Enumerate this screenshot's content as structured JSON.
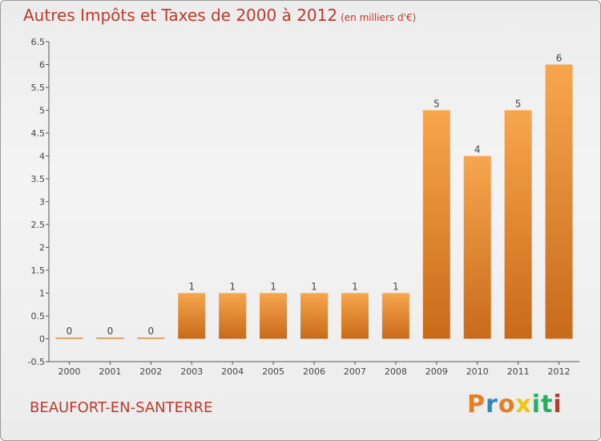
{
  "chart_data": {
    "type": "bar",
    "title": "Autres Impôts et Taxes de 2000 à 2012",
    "unit": "(en milliers d'€)",
    "categories": [
      "2000",
      "2001",
      "2002",
      "2003",
      "2004",
      "2005",
      "2006",
      "2007",
      "2008",
      "2009",
      "2010",
      "2011",
      "2012"
    ],
    "values": [
      0,
      0,
      0,
      1,
      1,
      1,
      1,
      1,
      1,
      5,
      4,
      5,
      6
    ],
    "data_labels": [
      "0",
      "0",
      "0",
      "1",
      "1",
      "1",
      "1",
      "1",
      "1",
      "5",
      "4",
      "5",
      "6"
    ],
    "ylim": [
      -0.5,
      6.5
    ],
    "yticks": [
      -0.5,
      0,
      0.5,
      1,
      1.5,
      2,
      2.5,
      3,
      3.5,
      4,
      4.5,
      5,
      5.5,
      6,
      6.5
    ],
    "ytick_labels": [
      "-0.5",
      "0",
      "0.5",
      "1",
      "1.5",
      "2",
      "2.5",
      "3",
      "3.5",
      "4",
      "4.5",
      "5",
      "5.5",
      "6",
      "6.5"
    ],
    "grid": false,
    "bar_color_light": "#f7a64e",
    "bar_color_dark": "#c86a1a"
  },
  "commune": "BEAUFORT-EN-SANTERRE",
  "logo": {
    "letters": [
      "P",
      "r",
      "o",
      "x",
      "i",
      "t",
      "i"
    ],
    "colors": [
      "#e67e22",
      "#2e86c1",
      "#e67e22",
      "#f1c40f",
      "#27ae60",
      "#27ae60",
      "#c0392b"
    ]
  },
  "colors": {
    "accent": "#c0392b",
    "axis": "#555555"
  }
}
